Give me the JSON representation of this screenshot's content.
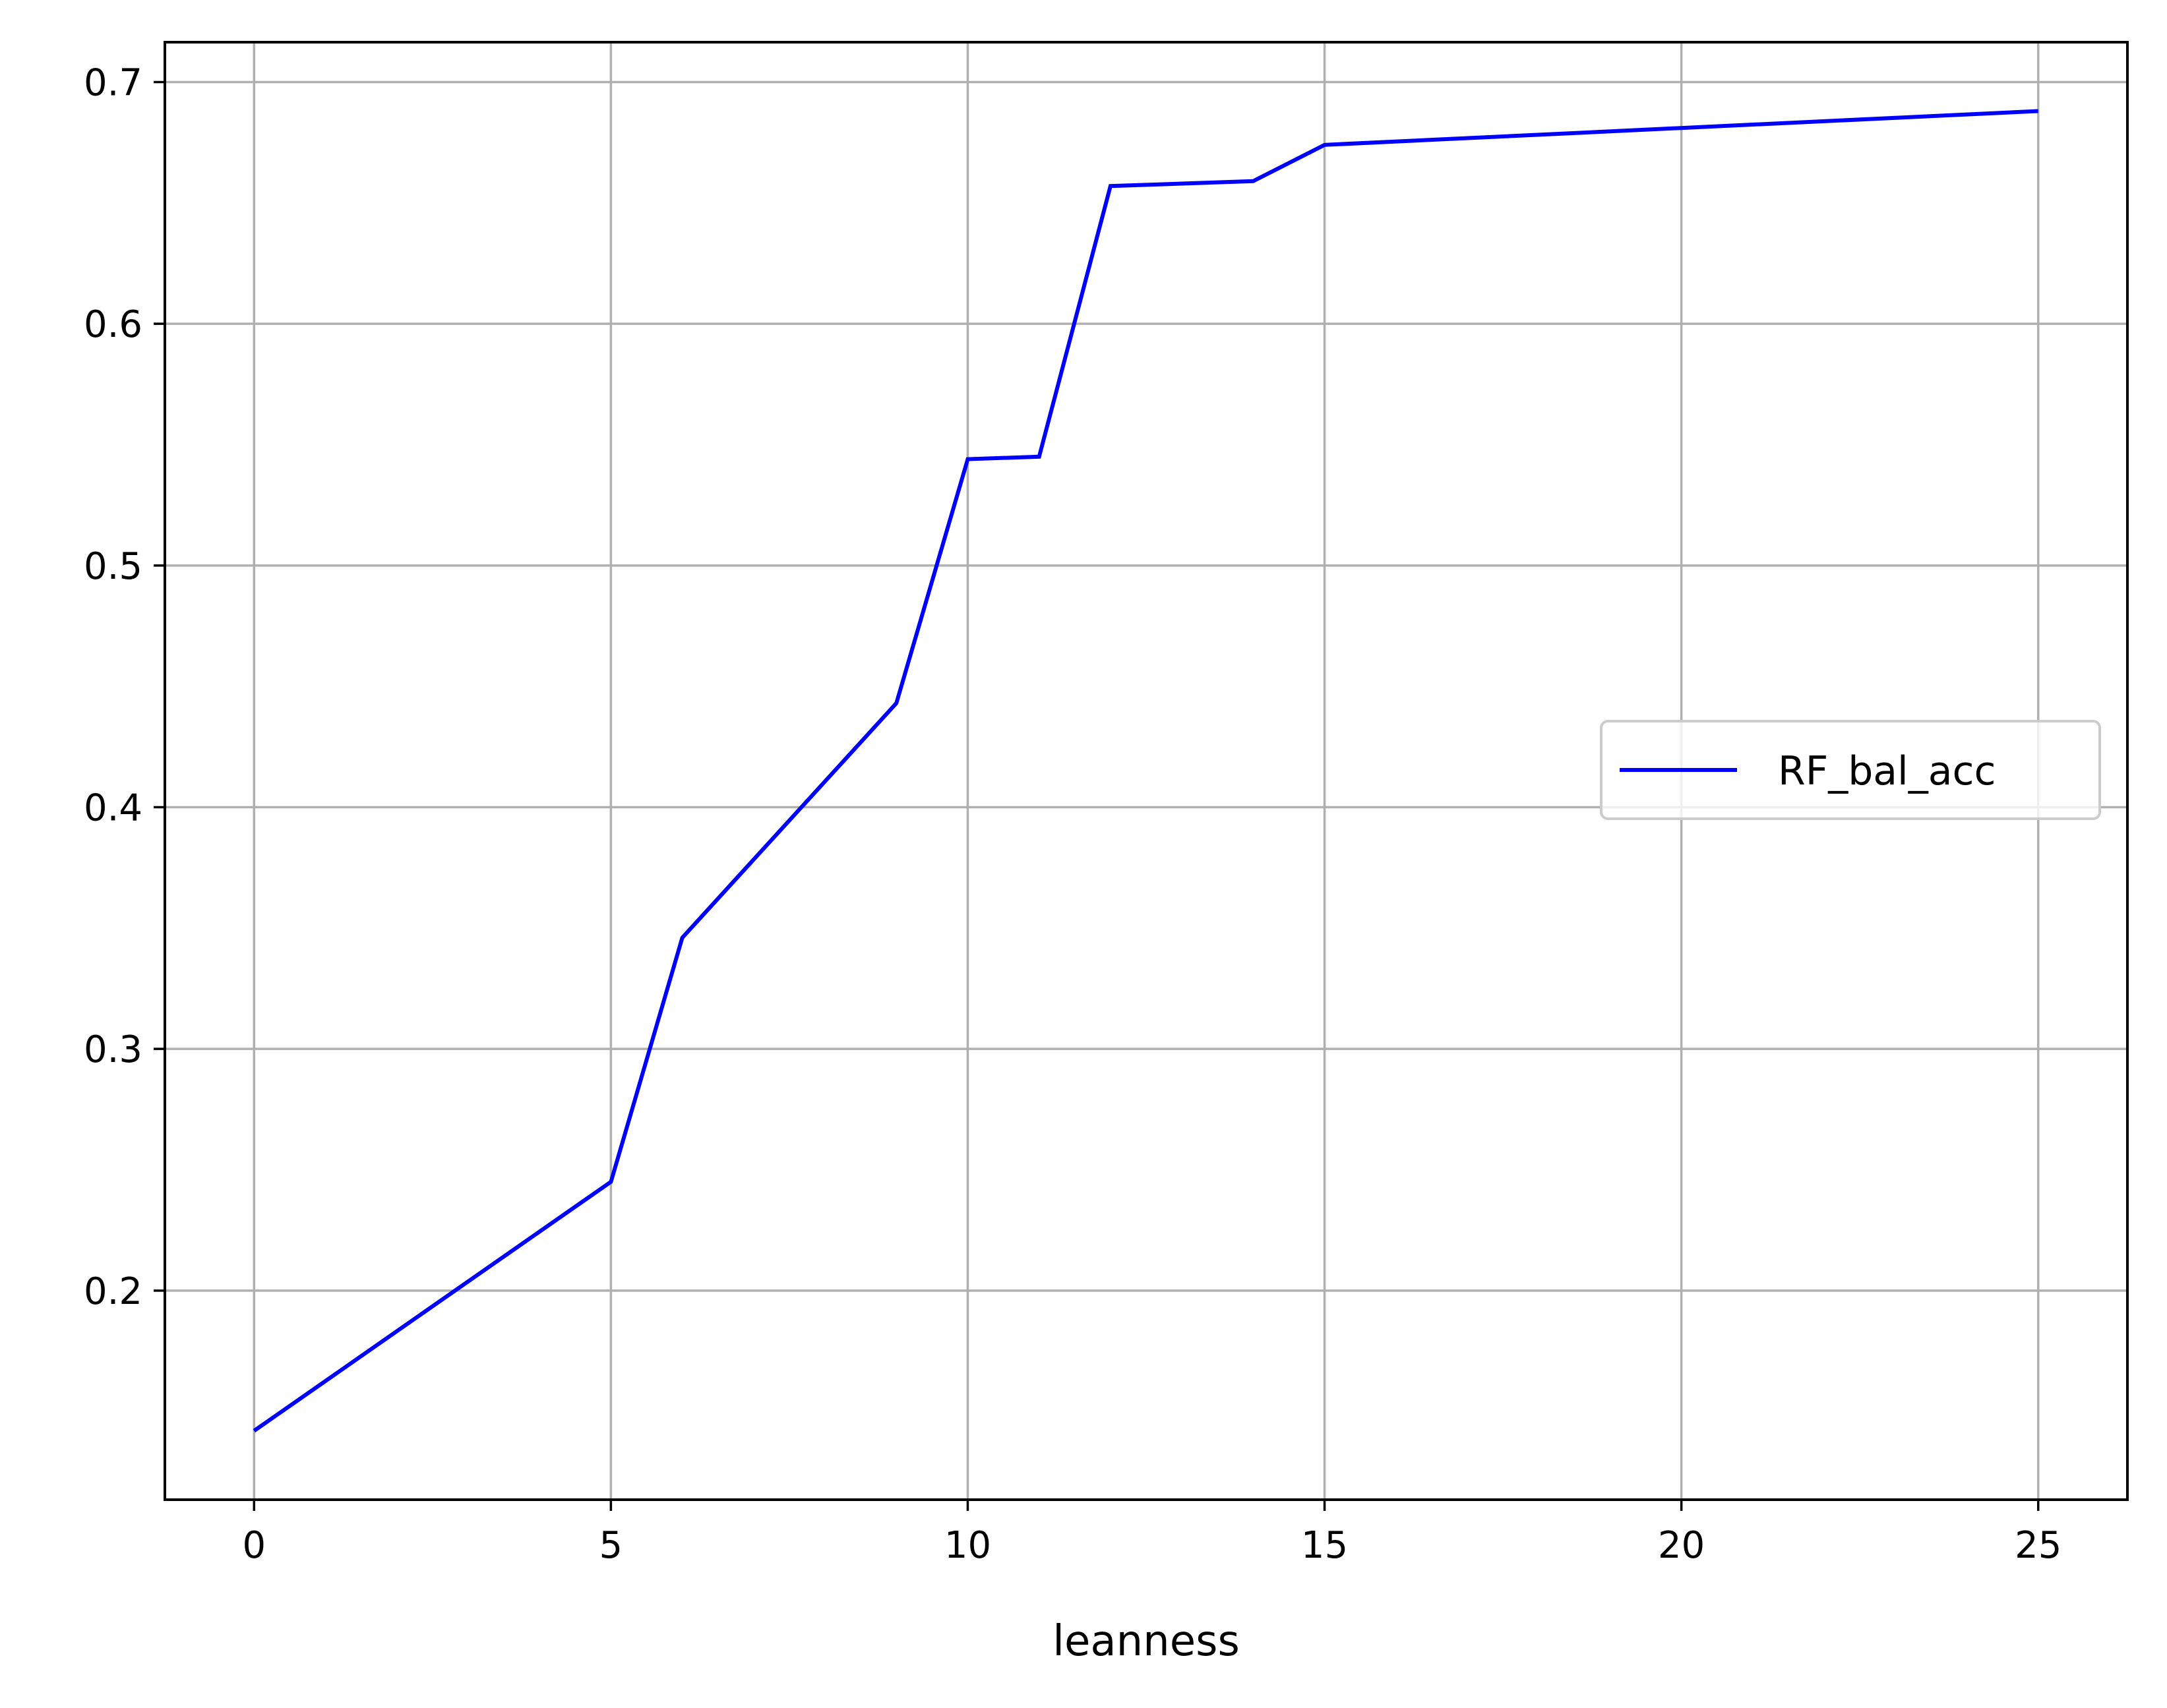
{
  "chart_data": {
    "type": "line",
    "title": "",
    "xlabel": "leanness",
    "ylabel": "",
    "xlim": [
      -1.25,
      26.25
    ],
    "ylim": [
      0.1135,
      0.7165
    ],
    "xticks": [
      0,
      5,
      10,
      15,
      20,
      25
    ],
    "xtick_labels": [
      "0",
      "5",
      "10",
      "15",
      "20",
      "25"
    ],
    "yticks": [
      0.2,
      0.3,
      0.4,
      0.5,
      0.6,
      0.7
    ],
    "ytick_labels": [
      "0.2",
      "0.3",
      "0.4",
      "0.5",
      "0.6",
      "0.7"
    ],
    "grid": true,
    "legend_position": "center-right",
    "series": [
      {
        "name": "RF_bal_acc",
        "color": "#0000ff",
        "x": [
          0,
          5,
          6,
          9,
          10,
          11,
          12,
          14,
          15,
          25
        ],
        "y": [
          0.142,
          0.245,
          0.346,
          0.443,
          0.544,
          0.545,
          0.657,
          0.659,
          0.674,
          0.688
        ]
      }
    ]
  }
}
